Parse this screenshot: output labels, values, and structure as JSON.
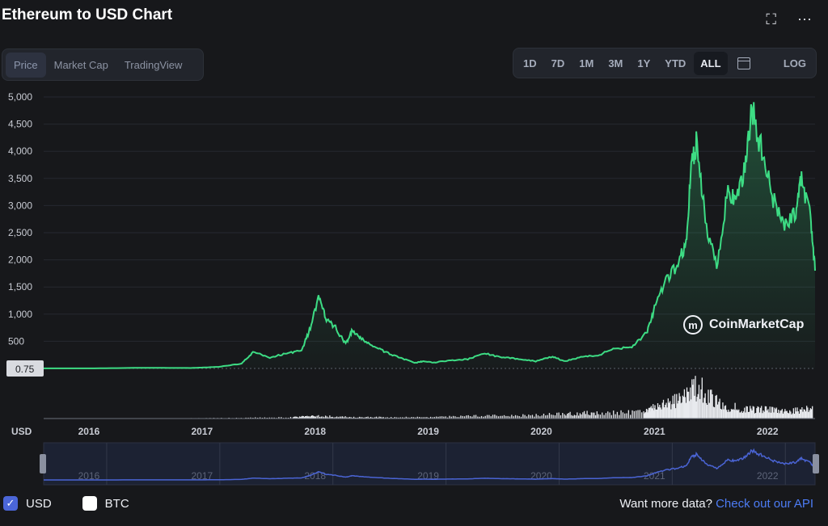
{
  "header": {
    "title": "Ethereum to USD Chart",
    "fullscreen_icon": "expand-icon",
    "more_icon": "more-icon"
  },
  "tabs": [
    {
      "label": "Price",
      "active": true
    },
    {
      "label": "Market Cap",
      "active": false
    },
    {
      "label": "TradingView",
      "active": false
    }
  ],
  "ranges": [
    {
      "label": "1D",
      "active": false
    },
    {
      "label": "7D",
      "active": false
    },
    {
      "label": "1M",
      "active": false
    },
    {
      "label": "3M",
      "active": false
    },
    {
      "label": "1Y",
      "active": false
    },
    {
      "label": "YTD",
      "active": false
    },
    {
      "label": "ALL",
      "active": true
    }
  ],
  "calendar_icon": "calendar-icon",
  "log_label": "LOG",
  "watermark": "CoinMarketCap",
  "colors": {
    "line": "#3ddc84",
    "volume": "#e8eaee",
    "navigator": "#4a64d4",
    "accent_link": "#4d7cf5"
  },
  "chart_data": {
    "type": "line",
    "title": "Ethereum to USD Chart",
    "ylabel": "USD",
    "ylim": [
      0,
      5000
    ],
    "y_ticks": [
      "5,000",
      "4,500",
      "4,000",
      "3,500",
      "3,000",
      "2,500",
      "2,000",
      "1,500",
      "1,000",
      "500"
    ],
    "current_price_label": "0.75",
    "x_ticks": [
      "2016",
      "2017",
      "2018",
      "2019",
      "2020",
      "2021",
      "2022"
    ],
    "grid": true,
    "series": [
      {
        "x": [
          2015.6,
          2016.0,
          2016.5,
          2016.9,
          2017.15,
          2017.35,
          2017.45,
          2017.6,
          2017.75,
          2017.88,
          2017.95,
          2018.03,
          2018.1,
          2018.18,
          2018.27,
          2018.33,
          2018.4,
          2018.5,
          2018.62,
          2018.75,
          2018.88,
          2018.95,
          2019.05,
          2019.2,
          2019.35,
          2019.5,
          2019.65,
          2019.8,
          2019.95,
          2020.1,
          2020.2,
          2020.35,
          2020.5,
          2020.65,
          2020.8,
          2020.93,
          2021.0,
          2021.1,
          2021.2,
          2021.28,
          2021.33,
          2021.37,
          2021.45,
          2021.55,
          2021.65,
          2021.72,
          2021.8,
          2021.86,
          2021.95,
          2022.05,
          2022.15,
          2022.25,
          2022.3,
          2022.38,
          2022.42
        ],
        "values": [
          1,
          1,
          12,
          8,
          30,
          90,
          300,
          200,
          280,
          330,
          700,
          1300,
          900,
          750,
          450,
          700,
          550,
          430,
          300,
          200,
          100,
          130,
          110,
          150,
          170,
          280,
          200,
          180,
          130,
          220,
          130,
          210,
          240,
          370,
          400,
          650,
          1100,
          1600,
          1900,
          2300,
          3800,
          4150,
          2700,
          1900,
          3300,
          3000,
          3700,
          4800,
          4000,
          3100,
          2600,
          2900,
          3500,
          2800,
          1800
        ]
      }
    ],
    "volume_x": [
      2015.6,
      2016.5,
      2017.3,
      2017.8,
      2018.0,
      2018.3,
      2018.6,
      2019.0,
      2019.4,
      2019.8,
      2020.2,
      2020.5,
      2020.9,
      2021.0,
      2021.2,
      2021.38,
      2021.6,
      2021.8,
      2022.0,
      2022.2,
      2022.4
    ],
    "volume_values": [
      0,
      0,
      2,
      4,
      8,
      5,
      4,
      4,
      8,
      9,
      14,
      18,
      20,
      36,
      55,
      100,
      38,
      30,
      26,
      22,
      32
    ]
  },
  "footer": {
    "usd_label": "USD",
    "btc_label": "BTC",
    "usd_checked": true,
    "btc_checked": false,
    "more_data_text": "Want more data?",
    "api_link": "Check out our API"
  }
}
